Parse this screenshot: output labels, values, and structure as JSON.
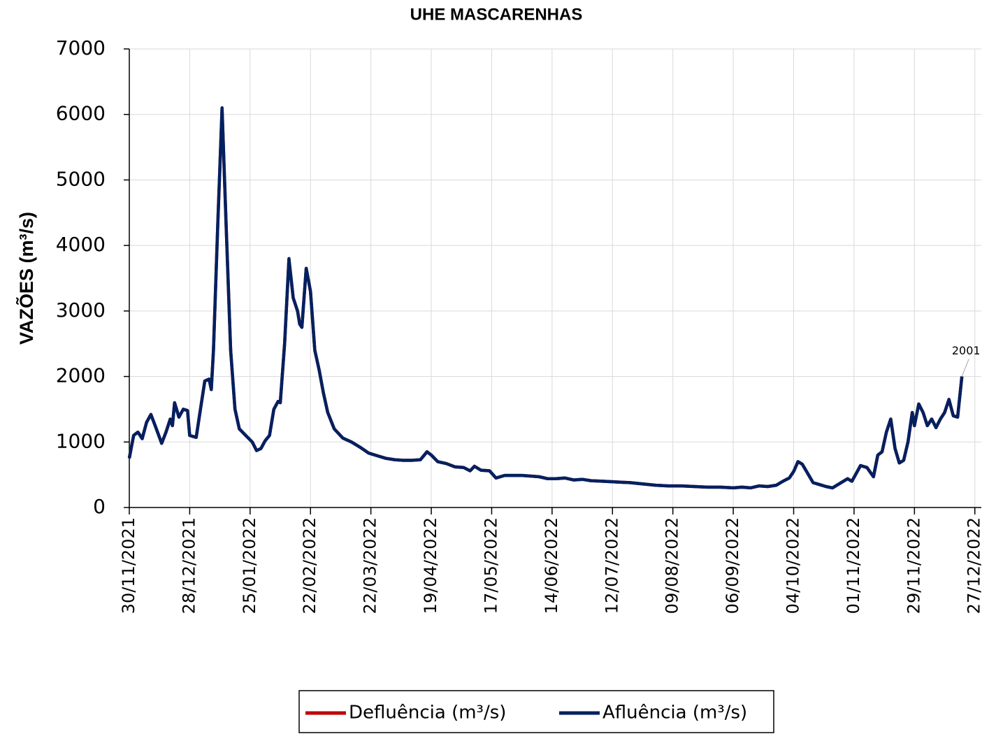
{
  "chart_data": {
    "type": "line",
    "title": "UHE MASCARENHAS",
    "y_label": "VAZÕES (m³/s)",
    "x": [
      "30/11/2021",
      "02/12/2021",
      "04/12/2021",
      "06/12/2021",
      "08/12/2021",
      "10/12/2021",
      "12/12/2021",
      "15/12/2021",
      "17/12/2021",
      "19/12/2021",
      "20/12/2021",
      "21/12/2021",
      "23/12/2021",
      "25/12/2021",
      "27/12/2021",
      "28/12/2021",
      "31/12/2021",
      "02/01/2022",
      "04/01/2022",
      "06/01/2022",
      "07/01/2022",
      "08/01/2022",
      "10/01/2022",
      "12/01/2022",
      "14/01/2022",
      "16/01/2022",
      "18/01/2022",
      "20/01/2022",
      "23/01/2022",
      "26/01/2022",
      "28/01/2022",
      "30/01/2022",
      "01/02/2022",
      "03/02/2022",
      "05/02/2022",
      "07/02/2022",
      "08/02/2022",
      "10/02/2022",
      "12/02/2022",
      "14/02/2022",
      "16/02/2022",
      "17/02/2022",
      "18/02/2022",
      "20/02/2022",
      "22/02/2022",
      "24/02/2022",
      "26/02/2022",
      "28/02/2022",
      "02/03/2022",
      "05/03/2022",
      "09/03/2022",
      "13/03/2022",
      "17/03/2022",
      "21/03/2022",
      "25/03/2022",
      "29/03/2022",
      "02/04/2022",
      "06/04/2022",
      "10/04/2022",
      "14/04/2022",
      "17/04/2022",
      "19/04/2022",
      "22/04/2022",
      "26/04/2022",
      "30/04/2022",
      "04/05/2022",
      "07/05/2022",
      "09/05/2022",
      "12/05/2022",
      "16/05/2022",
      "19/05/2022",
      "23/05/2022",
      "27/05/2022",
      "31/05/2022",
      "04/06/2022",
      "08/06/2022",
      "12/06/2022",
      "16/06/2022",
      "20/06/2022",
      "24/06/2022",
      "28/06/2022",
      "02/07/2022",
      "08/07/2022",
      "14/07/2022",
      "20/07/2022",
      "26/07/2022",
      "01/08/2022",
      "07/08/2022",
      "13/08/2022",
      "19/08/2022",
      "25/08/2022",
      "31/08/2022",
      "06/09/2022",
      "10/09/2022",
      "14/09/2022",
      "18/09/2022",
      "22/09/2022",
      "26/09/2022",
      "29/09/2022",
      "02/10/2022",
      "04/10/2022",
      "06/10/2022",
      "08/10/2022",
      "10/10/2022",
      "13/10/2022",
      "16/10/2022",
      "19/10/2022",
      "22/10/2022",
      "26/10/2022",
      "29/10/2022",
      "31/10/2022",
      "02/11/2022",
      "04/11/2022",
      "07/11/2022",
      "10/11/2022",
      "12/11/2022",
      "14/11/2022",
      "16/11/2022",
      "18/11/2022",
      "20/11/2022",
      "22/11/2022",
      "24/11/2022",
      "26/11/2022",
      "28/11/2022",
      "29/11/2022",
      "01/12/2022",
      "03/12/2022",
      "05/12/2022",
      "07/12/2022",
      "09/12/2022",
      "11/12/2022",
      "13/12/2022",
      "15/12/2022",
      "17/12/2022",
      "19/12/2022",
      "21/12/2022"
    ],
    "series": [
      {
        "name": "Defluência (m³/s)",
        "color": "#c00000",
        "values": [
          760,
          1100,
          1150,
          1060,
          1300,
          1420,
          1250,
          980,
          1150,
          1350,
          1250,
          1600,
          1380,
          1500,
          1480,
          1100,
          1070,
          1500,
          1930,
          1960,
          1800,
          2400,
          4300,
          6080,
          4200,
          2400,
          1500,
          1200,
          1100,
          1000,
          870,
          900,
          1020,
          1100,
          1500,
          1620,
          1600,
          2500,
          3780,
          3200,
          3000,
          2800,
          2750,
          3650,
          3300,
          2400,
          2100,
          1750,
          1450,
          1200,
          1060,
          1000,
          920,
          830,
          790,
          750,
          730,
          720,
          720,
          730,
          850,
          800,
          700,
          670,
          620,
          610,
          560,
          630,
          570,
          560,
          450,
          490,
          490,
          490,
          480,
          470,
          440,
          440,
          450,
          420,
          430,
          410,
          400,
          390,
          380,
          360,
          340,
          330,
          330,
          320,
          310,
          310,
          300,
          310,
          300,
          330,
          320,
          340,
          400,
          450,
          550,
          700,
          660,
          550,
          380,
          350,
          320,
          300,
          380,
          440,
          400,
          520,
          640,
          610,
          470,
          800,
          850,
          1150,
          1350,
          900,
          680,
          720,
          1000,
          1450,
          1250,
          1580,
          1450,
          1250,
          1350,
          1220,
          1350,
          1450,
          1650,
          1400,
          1380,
          2000
        ]
      },
      {
        "name": "Afluência (m³/s)",
        "color": "#002060",
        "values": [
          750,
          1100,
          1150,
          1050,
          1300,
          1420,
          1250,
          980,
          1150,
          1350,
          1250,
          1600,
          1380,
          1500,
          1480,
          1100,
          1070,
          1500,
          1930,
          1960,
          1800,
          2400,
          4300,
          6100,
          4200,
          2400,
          1500,
          1200,
          1100,
          1000,
          870,
          900,
          1020,
          1100,
          1500,
          1620,
          1600,
          2500,
          3800,
          3200,
          3000,
          2800,
          2750,
          3650,
          3300,
          2400,
          2100,
          1750,
          1450,
          1200,
          1060,
          1000,
          920,
          830,
          790,
          750,
          730,
          720,
          720,
          730,
          850,
          800,
          700,
          670,
          620,
          610,
          560,
          630,
          570,
          560,
          450,
          490,
          490,
          490,
          480,
          470,
          440,
          440,
          450,
          420,
          430,
          410,
          400,
          390,
          380,
          360,
          340,
          330,
          330,
          320,
          310,
          310,
          300,
          310,
          300,
          330,
          320,
          340,
          400,
          450,
          550,
          700,
          660,
          550,
          380,
          350,
          320,
          300,
          380,
          440,
          400,
          520,
          640,
          610,
          470,
          800,
          850,
          1150,
          1350,
          900,
          680,
          720,
          1000,
          1450,
          1250,
          1580,
          1450,
          1250,
          1350,
          1220,
          1350,
          1450,
          1650,
          1400,
          1380,
          2001
        ]
      }
    ],
    "annotation": "2001",
    "xlim": [
      "30/11/2021",
      "30/12/2022"
    ],
    "xticks": [
      "30/11/2021",
      "28/12/2021",
      "25/01/2022",
      "22/02/2022",
      "22/03/2022",
      "19/04/2022",
      "17/05/2022",
      "14/06/2022",
      "12/07/2022",
      "09/08/2022",
      "06/09/2022",
      "04/10/2022",
      "01/11/2022",
      "29/11/2022",
      "27/12/2022"
    ],
    "ylim": [
      0,
      7000
    ],
    "yticks": [
      0,
      1000,
      2000,
      3000,
      4000,
      5000,
      6000,
      7000
    ],
    "grid": true,
    "legend": "bottom"
  }
}
